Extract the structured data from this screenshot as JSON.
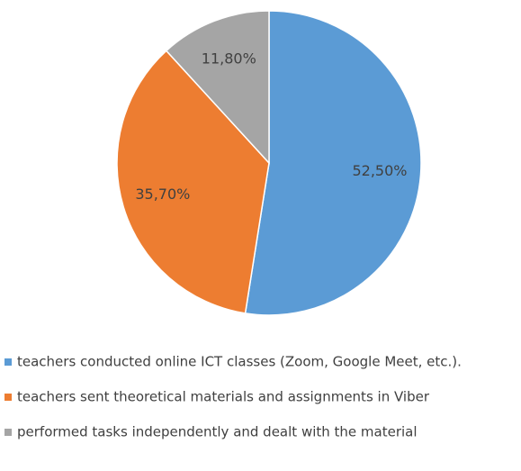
{
  "chart_data": {
    "type": "pie",
    "categories": [
      "teachers conducted online ICT classes (Zoom, Google Meet, etc.).",
      "teachers sent theoretical materials and assignments in Viber",
      "performed tasks independently and dealt with the material"
    ],
    "values": [
      52.5,
      35.7,
      11.8
    ],
    "value_labels": [
      "52,50%",
      "35,70%",
      "11,80%"
    ],
    "colors": [
      "#5b9bd5",
      "#ed7d31",
      "#a5a5a5"
    ],
    "legend": "bottom"
  }
}
